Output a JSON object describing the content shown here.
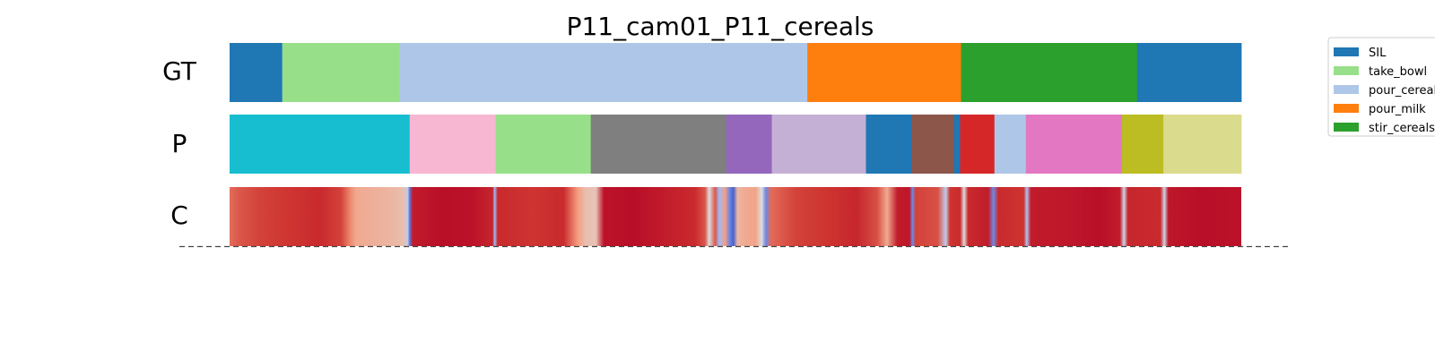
{
  "chart_data": {
    "type": "segmentation",
    "title": "P11_cam01_P11_cereals",
    "rows": [
      "GT",
      "P",
      "C"
    ],
    "x_range": [
      0,
      1
    ],
    "legend": {
      "placement": "top-right",
      "entries": [
        {
          "label": "SIL",
          "color": "#1f77b4"
        },
        {
          "label": "take_bowl",
          "color": "#98df8a"
        },
        {
          "label": "pour_cereals",
          "color": "#aec7e8"
        },
        {
          "label": "pour_milk",
          "color": "#ff7f0e"
        },
        {
          "label": "stir_cereals",
          "color": "#2ca02c"
        }
      ]
    },
    "gt_segments": [
      {
        "start": 0.0,
        "end": 0.052,
        "label": "SIL",
        "color": "#1f77b4"
      },
      {
        "start": 0.052,
        "end": 0.168,
        "label": "take_bowl",
        "color": "#98df8a"
      },
      {
        "start": 0.168,
        "end": 0.571,
        "label": "pour_cereals",
        "color": "#aec7e8"
      },
      {
        "start": 0.571,
        "end": 0.723,
        "label": "pour_milk",
        "color": "#ff7f0e"
      },
      {
        "start": 0.723,
        "end": 0.897,
        "label": "stir_cereals",
        "color": "#2ca02c"
      },
      {
        "start": 0.897,
        "end": 1.0,
        "label": "SIL",
        "color": "#1f77b4"
      }
    ],
    "pred_segments": [
      {
        "start": 0.0,
        "end": 0.178,
        "color": "#17becf"
      },
      {
        "start": 0.178,
        "end": 0.263,
        "color": "#f7b6d2"
      },
      {
        "start": 0.263,
        "end": 0.357,
        "color": "#98df8a"
      },
      {
        "start": 0.357,
        "end": 0.491,
        "color": "#7f7f7f"
      },
      {
        "start": 0.491,
        "end": 0.536,
        "color": "#9467bd"
      },
      {
        "start": 0.536,
        "end": 0.629,
        "color": "#c5b0d5"
      },
      {
        "start": 0.629,
        "end": 0.674,
        "color": "#1f77b4"
      },
      {
        "start": 0.674,
        "end": 0.716,
        "color": "#8c564b"
      },
      {
        "start": 0.716,
        "end": 0.722,
        "color": "#1f77b4"
      },
      {
        "start": 0.722,
        "end": 0.756,
        "color": "#d62728"
      },
      {
        "start": 0.756,
        "end": 0.787,
        "color": "#aec7e8"
      },
      {
        "start": 0.787,
        "end": 0.882,
        "color": "#e377c2"
      },
      {
        "start": 0.882,
        "end": 0.923,
        "color": "#bcbd22"
      },
      {
        "start": 0.923,
        "end": 1.0,
        "color": "#dbdb8d"
      }
    ],
    "confidence": {
      "colormap": "coolwarm",
      "range": [
        0,
        1
      ],
      "stops": [
        [
          0.0,
          0.82
        ],
        [
          0.01,
          0.85
        ],
        [
          0.03,
          0.88
        ],
        [
          0.06,
          0.9
        ],
        [
          0.09,
          0.92
        ],
        [
          0.11,
          0.88
        ],
        [
          0.119,
          0.78
        ],
        [
          0.125,
          0.7
        ],
        [
          0.14,
          0.68
        ],
        [
          0.16,
          0.65
        ],
        [
          0.172,
          0.62
        ],
        [
          0.176,
          0.4
        ],
        [
          0.178,
          0.1
        ],
        [
          0.181,
          0.95
        ],
        [
          0.21,
          0.98
        ],
        [
          0.24,
          0.97
        ],
        [
          0.26,
          0.93
        ],
        [
          0.262,
          0.3
        ],
        [
          0.265,
          0.92
        ],
        [
          0.3,
          0.9
        ],
        [
          0.33,
          0.92
        ],
        [
          0.344,
          0.75
        ],
        [
          0.352,
          0.62
        ],
        [
          0.362,
          0.6
        ],
        [
          0.37,
          0.97
        ],
        [
          0.4,
          0.98
        ],
        [
          0.43,
          0.95
        ],
        [
          0.46,
          0.92
        ],
        [
          0.47,
          0.85
        ],
        [
          0.474,
          0.5
        ],
        [
          0.48,
          0.85
        ],
        [
          0.484,
          0.3
        ],
        [
          0.49,
          0.75
        ],
        [
          0.494,
          0.15
        ],
        [
          0.498,
          0.05
        ],
        [
          0.502,
          0.65
        ],
        [
          0.51,
          0.7
        ],
        [
          0.52,
          0.72
        ],
        [
          0.526,
          0.5
        ],
        [
          0.53,
          0.15
        ],
        [
          0.535,
          0.82
        ],
        [
          0.56,
          0.88
        ],
        [
          0.59,
          0.9
        ],
        [
          0.62,
          0.93
        ],
        [
          0.64,
          0.86
        ],
        [
          0.65,
          0.7
        ],
        [
          0.66,
          0.95
        ],
        [
          0.672,
          0.96
        ],
        [
          0.675,
          0.15
        ],
        [
          0.678,
          0.88
        ],
        [
          0.7,
          0.86
        ],
        [
          0.708,
          0.4
        ],
        [
          0.712,
          0.9
        ],
        [
          0.722,
          0.92
        ],
        [
          0.726,
          0.5
        ],
        [
          0.73,
          0.92
        ],
        [
          0.75,
          0.95
        ],
        [
          0.755,
          0.15
        ],
        [
          0.76,
          0.92
        ],
        [
          0.785,
          0.9
        ],
        [
          0.788,
          0.35
        ],
        [
          0.792,
          0.95
        ],
        [
          0.83,
          0.96
        ],
        [
          0.86,
          0.98
        ],
        [
          0.88,
          0.95
        ],
        [
          0.884,
          0.45
        ],
        [
          0.888,
          0.93
        ],
        [
          0.92,
          0.92
        ],
        [
          0.924,
          0.45
        ],
        [
          0.928,
          0.96
        ],
        [
          0.96,
          0.98
        ],
        [
          1.0,
          0.97
        ]
      ]
    },
    "baseline": "dashed"
  }
}
